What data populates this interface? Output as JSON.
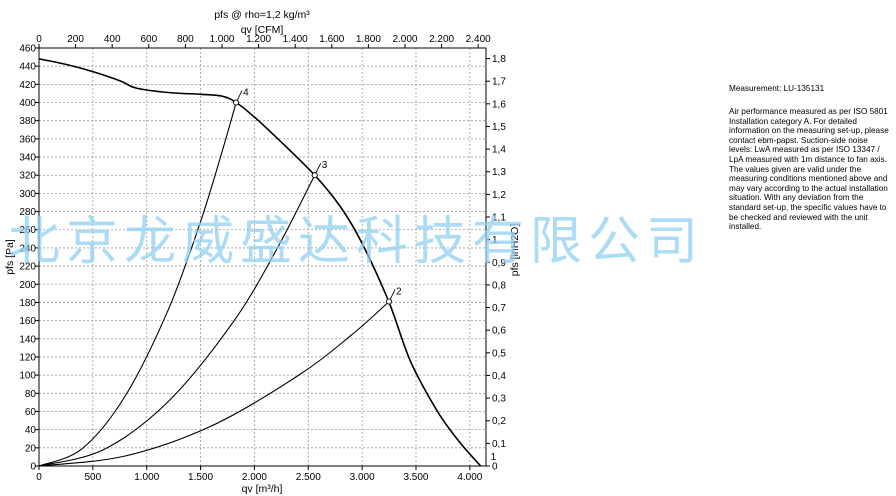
{
  "chart_data": {
    "type": "line",
    "title": "pfs @ rho=1,2 kg/m³",
    "x_top_label": "qv [CFM]",
    "x_top_ticks": [
      "0",
      "200",
      "400",
      "600",
      "800",
      "1.000",
      "1.200",
      "1.400",
      "1.600",
      "1.800",
      "2.000",
      "2.200",
      "2.400"
    ],
    "xlabel": "qv [m³/h]",
    "x_ticks": [
      "0",
      "500",
      "1.000",
      "1.500",
      "2.000",
      "2.500",
      "3.000",
      "3.500",
      "4.000"
    ],
    "xlim": [
      0,
      4150
    ],
    "ylabel": "pfs [Pa]",
    "y_ticks": [
      "0",
      "20",
      "40",
      "60",
      "80",
      "100",
      "120",
      "140",
      "160",
      "180",
      "200",
      "220",
      "240",
      "260",
      "280",
      "300",
      "320",
      "340",
      "360",
      "380",
      "400",
      "420",
      "440",
      "460"
    ],
    "ylim": [
      0,
      460
    ],
    "y_right_label": "pfs [inH2O]",
    "y_right_ticks": [
      "0",
      "0,1",
      "0,2",
      "0,3",
      "0,4",
      "0,5",
      "0,6",
      "0,7",
      "0,8",
      "0,9",
      "1",
      "1,1",
      "1,2",
      "1,3",
      "1,4",
      "1,5",
      "1,6",
      "1,7",
      "1,8"
    ],
    "grid": true,
    "series": [
      {
        "role": "fan-curve",
        "x": [
          0,
          250,
          500,
          750,
          900,
          1200,
          1500,
          1700,
          1830,
          2000,
          2200,
          2560,
          2800,
          3000,
          3250,
          3450,
          3700,
          3900,
          4100
        ],
        "y": [
          448,
          442,
          434,
          424,
          416,
          411,
          409,
          407,
          400,
          384,
          362,
          320,
          285,
          245,
          180,
          115,
          60,
          27,
          0
        ]
      },
      {
        "role": "system-curve",
        "label": "4",
        "x": [
          0,
          400,
          800,
          1200,
          1500,
          1700,
          1830
        ],
        "y": [
          0,
          19,
          77,
          172,
          269,
          346,
          400
        ]
      },
      {
        "role": "system-curve",
        "label": "3",
        "x": [
          0,
          600,
          1200,
          1800,
          2200,
          2560
        ],
        "y": [
          0,
          18,
          71,
          158,
          237,
          320
        ]
      },
      {
        "role": "system-curve",
        "label": "2",
        "x": [
          0,
          800,
          1600,
          2400,
          2900,
          3250
        ],
        "y": [
          0,
          11,
          44,
          99,
          144,
          181
        ]
      }
    ],
    "operating_points": [
      {
        "label": "1",
        "x": 4100,
        "y": 0
      },
      {
        "label": "2",
        "x": 3250,
        "y": 181
      },
      {
        "label": "3",
        "x": 2560,
        "y": 320
      },
      {
        "label": "4",
        "x": 1830,
        "y": 400
      }
    ]
  },
  "notes": {
    "title": "Measurement: LU-135131",
    "lines": [
      "Air performance measured as per ISO 5801",
      "Installation category A. For detailed",
      "information on the measuring set-up, please",
      "contact ebm-papst. Suction-side noise",
      "levels: LwA measured as per ISO 13347 /",
      "LpA measured with 1m distance to fan axis.",
      "The values given are valid under the",
      "measuring conditions mentioned above and",
      "may vary according to the actual installation",
      "situation. With any deviation from the",
      "standard set-up, the specific values have to",
      "be checked and reviewed with the unit",
      "installed."
    ]
  },
  "watermark": "北京龙威盛达科技有限公司",
  "colors": {
    "ink": "#000000",
    "grid": "#9a9a9a",
    "watermark": "#8fd0f2"
  }
}
